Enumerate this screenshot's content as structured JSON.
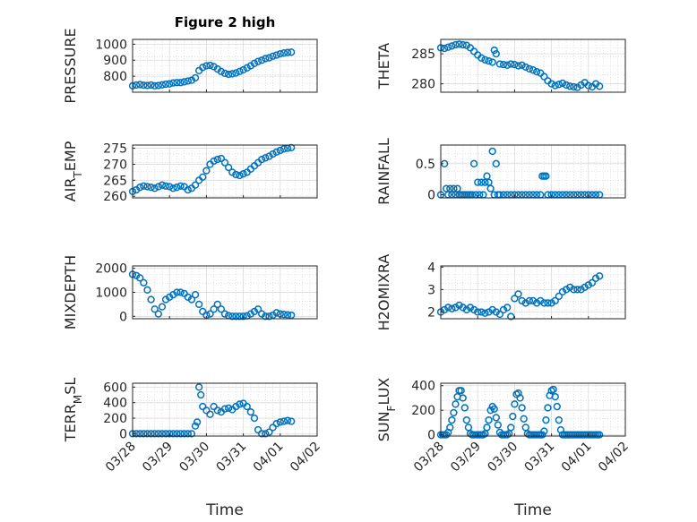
{
  "figure": {
    "title": "Figure 2 high",
    "xlabel": "Time",
    "xtick_labels": [
      "03/28",
      "03/29",
      "03/30",
      "03/31",
      "04/01",
      "04/02"
    ],
    "marker_color": "#0072BD"
  },
  "chart_data": [
    {
      "type": "scatter",
      "ylabel": "PRESSURE",
      "yticks": [
        800,
        900,
        1000
      ],
      "ylim": [
        700,
        1030
      ],
      "xlim": [
        0,
        5
      ],
      "grid": true,
      "x": [
        0.0,
        0.1,
        0.2,
        0.3,
        0.4,
        0.5,
        0.6,
        0.7,
        0.8,
        0.9,
        1.0,
        1.1,
        1.2,
        1.3,
        1.4,
        1.5,
        1.6,
        1.7,
        1.8,
        1.9,
        2.0,
        2.1,
        2.2,
        2.3,
        2.4,
        2.5,
        2.6,
        2.7,
        2.8,
        2.9,
        3.0,
        3.1,
        3.2,
        3.3,
        3.4,
        3.5,
        3.6,
        3.7,
        3.8,
        3.9,
        4.0,
        4.1,
        4.2,
        4.3
      ],
      "y": [
        740,
        745,
        748,
        744,
        742,
        745,
        740,
        742,
        746,
        750,
        752,
        758,
        760,
        760,
        765,
        770,
        775,
        790,
        835,
        855,
        865,
        868,
        860,
        845,
        830,
        818,
        812,
        815,
        820,
        830,
        840,
        852,
        865,
        880,
        892,
        900,
        910,
        915,
        925,
        932,
        940,
        945,
        948,
        950
      ]
    },
    {
      "type": "scatter",
      "ylabel": "THETA",
      "yticks": [
        280,
        285
      ],
      "ylim": [
        278.6,
        287.4
      ],
      "xlim": [
        0,
        5
      ],
      "grid": true,
      "x": [
        0.0,
        0.1,
        0.2,
        0.3,
        0.4,
        0.5,
        0.6,
        0.7,
        0.8,
        0.9,
        1.0,
        1.1,
        1.2,
        1.3,
        1.4,
        1.45,
        1.5,
        1.6,
        1.7,
        1.8,
        1.9,
        2.0,
        2.1,
        2.2,
        2.3,
        2.4,
        2.5,
        2.6,
        2.7,
        2.8,
        2.9,
        3.0,
        3.1,
        3.2,
        3.3,
        3.4,
        3.5,
        3.6,
        3.7,
        3.8,
        3.9,
        4.0,
        4.1,
        4.2,
        4.3
      ],
      "y": [
        286.0,
        285.9,
        286.1,
        286.3,
        286.5,
        286.6,
        286.5,
        286.4,
        286.0,
        285.4,
        284.8,
        284.3,
        284.0,
        283.8,
        283.6,
        285.6,
        285.0,
        283.3,
        283.2,
        283.1,
        283.3,
        283.2,
        283.0,
        283.1,
        282.8,
        282.5,
        282.3,
        282.0,
        281.8,
        281.2,
        280.5,
        280.0,
        279.7,
        279.9,
        280.1,
        279.8,
        279.6,
        279.5,
        279.4,
        279.8,
        280.2,
        279.7,
        279.5,
        280.0,
        279.6
      ]
    },
    {
      "type": "scatter",
      "ylabel": "AIR_TEMP",
      "ylabel_main": "AIR",
      "ylabel_sub": "T",
      "ylabel_rest": "EMP",
      "yticks": [
        260,
        265,
        270,
        275
      ],
      "ylim": [
        259.5,
        276
      ],
      "xlim": [
        0,
        5
      ],
      "grid": true,
      "x": [
        0.0,
        0.1,
        0.2,
        0.3,
        0.4,
        0.5,
        0.6,
        0.7,
        0.8,
        0.9,
        1.0,
        1.1,
        1.2,
        1.3,
        1.4,
        1.5,
        1.6,
        1.7,
        1.8,
        1.9,
        2.0,
        2.1,
        2.2,
        2.3,
        2.4,
        2.5,
        2.6,
        2.7,
        2.8,
        2.9,
        3.0,
        3.1,
        3.2,
        3.3,
        3.4,
        3.5,
        3.6,
        3.7,
        3.8,
        3.9,
        4.0,
        4.1,
        4.2,
        4.3
      ],
      "y": [
        261.5,
        262.0,
        262.8,
        263.2,
        263.0,
        262.8,
        262.5,
        263.0,
        263.5,
        263.2,
        263.0,
        262.5,
        262.8,
        263.2,
        263.0,
        262.0,
        262.5,
        263.5,
        265.0,
        266.0,
        268.0,
        270.0,
        271.0,
        271.5,
        271.8,
        270.5,
        269.0,
        267.5,
        266.8,
        266.5,
        267.0,
        267.5,
        268.5,
        269.5,
        270.5,
        271.5,
        272.0,
        272.5,
        273.2,
        273.8,
        274.3,
        274.8,
        275.0,
        275.2
      ]
    },
    {
      "type": "scatter",
      "ylabel": "RAINFALL",
      "yticks": [
        0,
        0.5
      ],
      "ytick_labels": [
        "0",
        "0.5"
      ],
      "ylim": [
        -0.05,
        0.8
      ],
      "xlim": [
        0,
        5
      ],
      "grid": true,
      "x": [
        0.0,
        0.1,
        0.15,
        0.2,
        0.25,
        0.3,
        0.35,
        0.4,
        0.45,
        0.5,
        0.55,
        0.6,
        0.65,
        0.7,
        0.75,
        0.8,
        0.85,
        0.9,
        0.95,
        1.0,
        1.05,
        1.1,
        1.15,
        1.2,
        1.25,
        1.3,
        1.35,
        1.4,
        1.45,
        1.5,
        1.55,
        1.6,
        1.7,
        1.8,
        1.9,
        2.0,
        2.1,
        2.2,
        2.3,
        2.4,
        2.5,
        2.6,
        2.7,
        2.75,
        2.8,
        2.85,
        2.9,
        3.0,
        3.1,
        3.2,
        3.3,
        3.4,
        3.5,
        3.6,
        3.7,
        3.8,
        3.9,
        4.0,
        4.1,
        4.2,
        4.3
      ],
      "y": [
        0,
        0.5,
        0.1,
        0,
        0.1,
        0,
        0.1,
        0,
        0.1,
        0,
        0,
        0,
        0,
        0,
        0,
        0,
        0,
        0.5,
        0,
        0.2,
        0,
        0.2,
        0,
        0.2,
        0.3,
        0.2,
        0.1,
        0.7,
        0,
        0.5,
        0,
        0,
        0,
        0,
        0,
        0,
        0,
        0,
        0,
        0,
        0,
        0,
        0,
        0.3,
        0.3,
        0.3,
        0,
        0,
        0,
        0,
        0,
        0,
        0,
        0,
        0,
        0,
        0,
        0,
        0,
        0,
        0
      ]
    },
    {
      "type": "scatter",
      "ylabel": "MIXDEPTH",
      "yticks": [
        0,
        1000,
        2000
      ],
      "ylim": [
        -100,
        2100
      ],
      "xlim": [
        0,
        5
      ],
      "grid": true,
      "x": [
        0.0,
        0.1,
        0.2,
        0.3,
        0.4,
        0.5,
        0.6,
        0.7,
        0.8,
        0.9,
        1.0,
        1.1,
        1.2,
        1.3,
        1.4,
        1.5,
        1.6,
        1.7,
        1.8,
        1.9,
        2.0,
        2.1,
        2.2,
        2.3,
        2.4,
        2.5,
        2.6,
        2.7,
        2.8,
        2.9,
        3.0,
        3.1,
        3.2,
        3.3,
        3.4,
        3.5,
        3.6,
        3.7,
        3.8,
        3.9,
        4.0,
        4.1,
        4.2,
        4.3
      ],
      "y": [
        1750,
        1700,
        1600,
        1400,
        1100,
        700,
        300,
        100,
        400,
        700,
        800,
        900,
        1000,
        1000,
        950,
        800,
        700,
        900,
        500,
        200,
        50,
        100,
        300,
        500,
        300,
        100,
        30,
        0,
        0,
        0,
        0,
        20,
        100,
        200,
        300,
        100,
        0,
        0,
        50,
        150,
        100,
        80,
        60,
        50
      ]
    },
    {
      "type": "scatter",
      "ylabel": "H2OMIXRA",
      "yticks": [
        2,
        3,
        4
      ],
      "ylim": [
        1.7,
        4.05
      ],
      "xlim": [
        0,
        5
      ],
      "grid": true,
      "x": [
        0.0,
        0.1,
        0.2,
        0.3,
        0.4,
        0.5,
        0.6,
        0.7,
        0.8,
        0.9,
        1.0,
        1.1,
        1.2,
        1.3,
        1.4,
        1.5,
        1.6,
        1.7,
        1.8,
        1.9,
        2.0,
        2.1,
        2.2,
        2.3,
        2.4,
        2.5,
        2.6,
        2.7,
        2.8,
        2.9,
        3.0,
        3.1,
        3.2,
        3.3,
        3.4,
        3.5,
        3.6,
        3.7,
        3.8,
        3.9,
        4.0,
        4.1,
        4.2,
        4.3
      ],
      "y": [
        2.0,
        2.1,
        2.2,
        2.15,
        2.2,
        2.3,
        2.2,
        2.1,
        2.2,
        2.1,
        2.0,
        2.0,
        1.95,
        2.0,
        2.1,
        2.0,
        1.9,
        2.1,
        2.2,
        1.8,
        2.6,
        2.8,
        2.5,
        2.4,
        2.5,
        2.5,
        2.4,
        2.5,
        2.4,
        2.4,
        2.4,
        2.5,
        2.7,
        2.9,
        3.0,
        3.1,
        3.0,
        3.0,
        3.0,
        3.1,
        3.2,
        3.3,
        3.5,
        3.6
      ]
    },
    {
      "type": "scatter",
      "ylabel": "TERR_MSL",
      "ylabel_main": "TERR",
      "ylabel_sub": "M",
      "ylabel_rest": "SL",
      "yticks": [
        0,
        200,
        400,
        600
      ],
      "ylim": [
        -30,
        650
      ],
      "xlim": [
        0,
        5
      ],
      "grid": true,
      "x": [
        0.0,
        0.1,
        0.2,
        0.3,
        0.4,
        0.5,
        0.6,
        0.7,
        0.8,
        0.9,
        1.0,
        1.1,
        1.2,
        1.3,
        1.4,
        1.5,
        1.6,
        1.7,
        1.75,
        1.8,
        1.85,
        1.9,
        2.0,
        2.1,
        2.2,
        2.3,
        2.4,
        2.5,
        2.6,
        2.7,
        2.8,
        2.9,
        3.0,
        3.1,
        3.2,
        3.3,
        3.4,
        3.5,
        3.6,
        3.7,
        3.8,
        3.9,
        4.0,
        4.1,
        4.2,
        4.3
      ],
      "y": [
        0,
        0,
        0,
        0,
        0,
        0,
        0,
        0,
        0,
        0,
        0,
        0,
        0,
        0,
        0,
        0,
        0,
        100,
        150,
        600,
        500,
        350,
        300,
        250,
        350,
        300,
        280,
        320,
        330,
        310,
        350,
        380,
        390,
        350,
        280,
        200,
        50,
        0,
        0,
        20,
        80,
        130,
        150,
        160,
        170,
        160
      ]
    },
    {
      "type": "scatter",
      "ylabel": "SUN_FLUX",
      "ylabel_main": "SUN",
      "ylabel_sub": "F",
      "ylabel_rest": "LUX",
      "yticks": [
        0,
        200,
        400
      ],
      "ylim": [
        -10,
        420
      ],
      "xlim": [
        0,
        5
      ],
      "grid": true,
      "x": [
        0.0,
        0.05,
        0.1,
        0.15,
        0.2,
        0.25,
        0.3,
        0.35,
        0.4,
        0.45,
        0.5,
        0.55,
        0.6,
        0.65,
        0.7,
        0.75,
        0.8,
        0.85,
        0.9,
        0.95,
        1.0,
        1.05,
        1.1,
        1.15,
        1.2,
        1.25,
        1.3,
        1.35,
        1.4,
        1.45,
        1.5,
        1.55,
        1.6,
        1.65,
        1.7,
        1.75,
        1.8,
        1.85,
        1.9,
        1.95,
        2.0,
        2.05,
        2.1,
        2.15,
        2.2,
        2.25,
        2.3,
        2.35,
        2.4,
        2.45,
        2.5,
        2.55,
        2.6,
        2.65,
        2.7,
        2.75,
        2.8,
        2.85,
        2.9,
        2.95,
        3.0,
        3.05,
        3.1,
        3.15,
        3.2,
        3.25,
        3.3,
        3.35,
        3.4,
        3.45,
        3.5,
        3.55,
        3.6,
        3.65,
        3.7,
        3.75,
        3.8,
        3.85,
        3.9,
        3.95,
        4.0,
        4.05,
        4.1,
        4.15,
        4.2,
        4.25,
        4.3
      ],
      "y": [
        0,
        0,
        0,
        0,
        20,
        60,
        120,
        180,
        250,
        310,
        360,
        360,
        300,
        220,
        120,
        60,
        10,
        0,
        0,
        0,
        0,
        0,
        0,
        0,
        10,
        60,
        120,
        200,
        230,
        210,
        140,
        80,
        20,
        0,
        0,
        0,
        0,
        10,
        60,
        150,
        250,
        330,
        340,
        300,
        220,
        130,
        60,
        10,
        0,
        0,
        0,
        0,
        0,
        0,
        0,
        0,
        30,
        120,
        220,
        320,
        360,
        370,
        310,
        230,
        120,
        40,
        0,
        0,
        0,
        0,
        0,
        0,
        0,
        0,
        0,
        0,
        0,
        0,
        0,
        0,
        0,
        0,
        0,
        0,
        0,
        0,
        0
      ]
    }
  ]
}
